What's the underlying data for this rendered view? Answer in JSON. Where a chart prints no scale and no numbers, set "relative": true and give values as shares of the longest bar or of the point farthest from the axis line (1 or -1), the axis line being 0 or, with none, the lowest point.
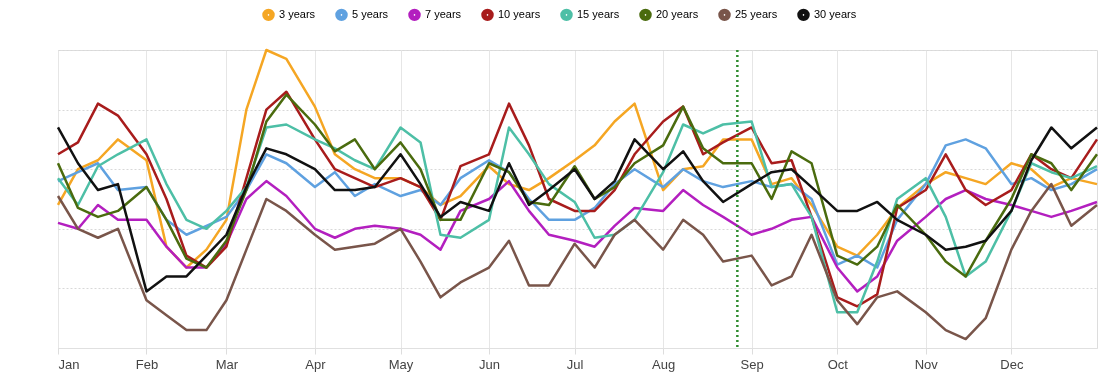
{
  "chart_data": {
    "type": "line",
    "relative": true,
    "grid": true,
    "legend": "top",
    "x": [
      "--01-01",
      "--01-08",
      "--01-15",
      "--01-22",
      "--02-01",
      "--02-08",
      "--02-15",
      "--02-22",
      "--03-01",
      "--03-08",
      "--03-15",
      "--03-22",
      "--04-01",
      "--04-08",
      "--04-15",
      "--04-22",
      "--05-01",
      "--05-08",
      "--05-15",
      "--05-22",
      "--06-01",
      "--06-08",
      "--06-15",
      "--06-22",
      "--07-01",
      "--07-08",
      "--07-15",
      "--07-22",
      "--08-01",
      "--08-08",
      "--08-15",
      "--08-22",
      "--09-01",
      "--09-08",
      "--09-15",
      "--09-22",
      "--10-01",
      "--10-08",
      "--10-15",
      "--10-22",
      "--11-01",
      "--11-08",
      "--11-15",
      "--11-22",
      "--12-01",
      "--12-08",
      "--12-15",
      "--12-22",
      "--12-31"
    ],
    "xlim": [
      "--01-01",
      "--12-31"
    ],
    "xticks": [
      {
        "value": "--01-01",
        "label": "Jan"
      },
      {
        "value": "--02-01",
        "label": "Feb"
      },
      {
        "value": "--03-01",
        "label": "Mar"
      },
      {
        "value": "--04-01",
        "label": "Apr"
      },
      {
        "value": "--05-01",
        "label": "May"
      },
      {
        "value": "--06-01",
        "label": "Jun"
      },
      {
        "value": "--07-01",
        "label": "Jul"
      },
      {
        "value": "--08-01",
        "label": "Aug"
      },
      {
        "value": "--09-01",
        "label": "Sep"
      },
      {
        "value": "--10-01",
        "label": "Oct"
      },
      {
        "value": "--11-01",
        "label": "Nov"
      },
      {
        "value": "--12-01",
        "label": "Dec"
      }
    ],
    "ref_lines": [
      {
        "axis": "x",
        "value": "--08-27",
        "label": null,
        "color": "#2e8b2e",
        "line_style": "dotted"
      }
    ],
    "series": [
      {
        "name": "3 years",
        "color": "#f5a623",
        "values": [
          0.48,
          0.6,
          0.63,
          0.7,
          0.63,
          0.34,
          0.27,
          0.33,
          0.43,
          0.8,
          1.0,
          0.97,
          0.81,
          0.65,
          0.6,
          0.57,
          0.57,
          0.54,
          0.48,
          0.51,
          0.61,
          0.55,
          0.53,
          0.57,
          0.63,
          0.68,
          0.76,
          0.82,
          0.53,
          0.6,
          0.61,
          0.7,
          0.7,
          0.55,
          0.57,
          0.48,
          0.34,
          0.31,
          0.38,
          0.47,
          0.55,
          0.59,
          0.57,
          0.55,
          0.62,
          0.6,
          0.54,
          0.57,
          0.55
        ]
      },
      {
        "name": "5 years",
        "color": "#5fa1e0",
        "values": [
          0.56,
          0.59,
          0.62,
          0.53,
          0.54,
          0.43,
          0.38,
          0.41,
          0.44,
          0.53,
          0.65,
          0.62,
          0.54,
          0.59,
          0.51,
          0.55,
          0.51,
          0.53,
          0.48,
          0.57,
          0.63,
          0.59,
          0.5,
          0.43,
          0.43,
          0.47,
          0.55,
          0.6,
          0.54,
          0.6,
          0.56,
          0.54,
          0.56,
          0.54,
          0.55,
          0.5,
          0.28,
          0.31,
          0.27,
          0.43,
          0.55,
          0.68,
          0.7,
          0.67,
          0.55,
          0.57,
          0.53,
          0.55,
          0.6
        ]
      },
      {
        "name": "7 years",
        "color": "#b31fbf",
        "values": [
          0.42,
          0.4,
          0.48,
          0.43,
          0.43,
          0.34,
          0.27,
          0.27,
          0.35,
          0.5,
          0.56,
          0.51,
          0.4,
          0.37,
          0.4,
          0.41,
          0.4,
          0.38,
          0.33,
          0.46,
          0.5,
          0.56,
          0.46,
          0.38,
          0.36,
          0.34,
          0.41,
          0.47,
          0.46,
          0.53,
          0.48,
          0.44,
          0.38,
          0.4,
          0.43,
          0.44,
          0.27,
          0.19,
          0.24,
          0.36,
          0.44,
          0.5,
          0.53,
          0.5,
          0.48,
          0.46,
          0.44,
          0.46,
          0.49
        ]
      },
      {
        "name": "10 years",
        "color": "#a81c1c",
        "values": [
          0.65,
          0.69,
          0.82,
          0.78,
          0.65,
          0.5,
          0.31,
          0.27,
          0.34,
          0.57,
          0.8,
          0.86,
          0.7,
          0.6,
          0.57,
          0.54,
          0.57,
          0.54,
          0.43,
          0.61,
          0.65,
          0.82,
          0.68,
          0.5,
          0.46,
          0.46,
          0.53,
          0.65,
          0.76,
          0.81,
          0.65,
          0.69,
          0.74,
          0.62,
          0.63,
          0.44,
          0.17,
          0.14,
          0.18,
          0.47,
          0.53,
          0.65,
          0.53,
          0.48,
          0.53,
          0.65,
          0.6,
          0.57,
          0.7
        ]
      },
      {
        "name": "15 years",
        "color": "#4dbfa6",
        "values": [
          0.57,
          0.48,
          0.61,
          0.65,
          0.7,
          0.55,
          0.43,
          0.4,
          0.46,
          0.54,
          0.74,
          0.75,
          0.7,
          0.67,
          0.63,
          0.6,
          0.74,
          0.69,
          0.38,
          0.37,
          0.43,
          0.74,
          0.65,
          0.55,
          0.49,
          0.37,
          0.38,
          0.43,
          0.59,
          0.75,
          0.72,
          0.75,
          0.76,
          0.54,
          0.55,
          0.44,
          0.12,
          0.12,
          0.29,
          0.5,
          0.57,
          0.44,
          0.24,
          0.29,
          0.46,
          0.62,
          0.59,
          0.57,
          0.61
        ]
      },
      {
        "name": "20 years",
        "color": "#4a6b0e",
        "values": [
          0.62,
          0.47,
          0.44,
          0.46,
          0.54,
          0.43,
          0.3,
          0.27,
          0.36,
          0.53,
          0.76,
          0.85,
          0.75,
          0.66,
          0.7,
          0.6,
          0.69,
          0.6,
          0.43,
          0.43,
          0.62,
          0.59,
          0.49,
          0.48,
          0.61,
          0.5,
          0.54,
          0.62,
          0.68,
          0.81,
          0.67,
          0.62,
          0.62,
          0.5,
          0.66,
          0.62,
          0.31,
          0.28,
          0.34,
          0.48,
          0.38,
          0.29,
          0.24,
          0.36,
          0.5,
          0.65,
          0.62,
          0.53,
          0.65
        ]
      },
      {
        "name": "25 years",
        "color": "#79554a",
        "values": [
          0.51,
          0.4,
          0.37,
          0.4,
          0.16,
          0.11,
          0.06,
          0.06,
          0.16,
          0.33,
          0.5,
          0.46,
          0.38,
          0.33,
          0.34,
          0.35,
          0.4,
          0.29,
          0.17,
          0.22,
          0.27,
          0.36,
          0.21,
          0.21,
          0.35,
          0.27,
          0.38,
          0.43,
          0.33,
          0.43,
          0.38,
          0.29,
          0.31,
          0.21,
          0.24,
          0.38,
          0.16,
          0.08,
          0.17,
          0.19,
          0.12,
          0.06,
          0.03,
          0.1,
          0.33,
          0.46,
          0.55,
          0.41,
          0.48
        ]
      },
      {
        "name": "30 years",
        "color": "#111111",
        "values": [
          0.74,
          0.62,
          0.53,
          0.55,
          0.19,
          0.24,
          0.24,
          0.31,
          0.38,
          0.54,
          0.67,
          0.65,
          0.6,
          0.53,
          0.53,
          0.54,
          0.65,
          0.55,
          0.44,
          0.49,
          0.46,
          0.62,
          0.48,
          0.53,
          0.6,
          0.5,
          0.56,
          0.7,
          0.6,
          0.66,
          0.56,
          0.49,
          0.55,
          0.59,
          0.6,
          0.54,
          0.46,
          0.46,
          0.49,
          0.43,
          0.38,
          0.33,
          0.34,
          0.36,
          0.46,
          0.63,
          0.74,
          0.67,
          0.74
        ]
      }
    ]
  }
}
